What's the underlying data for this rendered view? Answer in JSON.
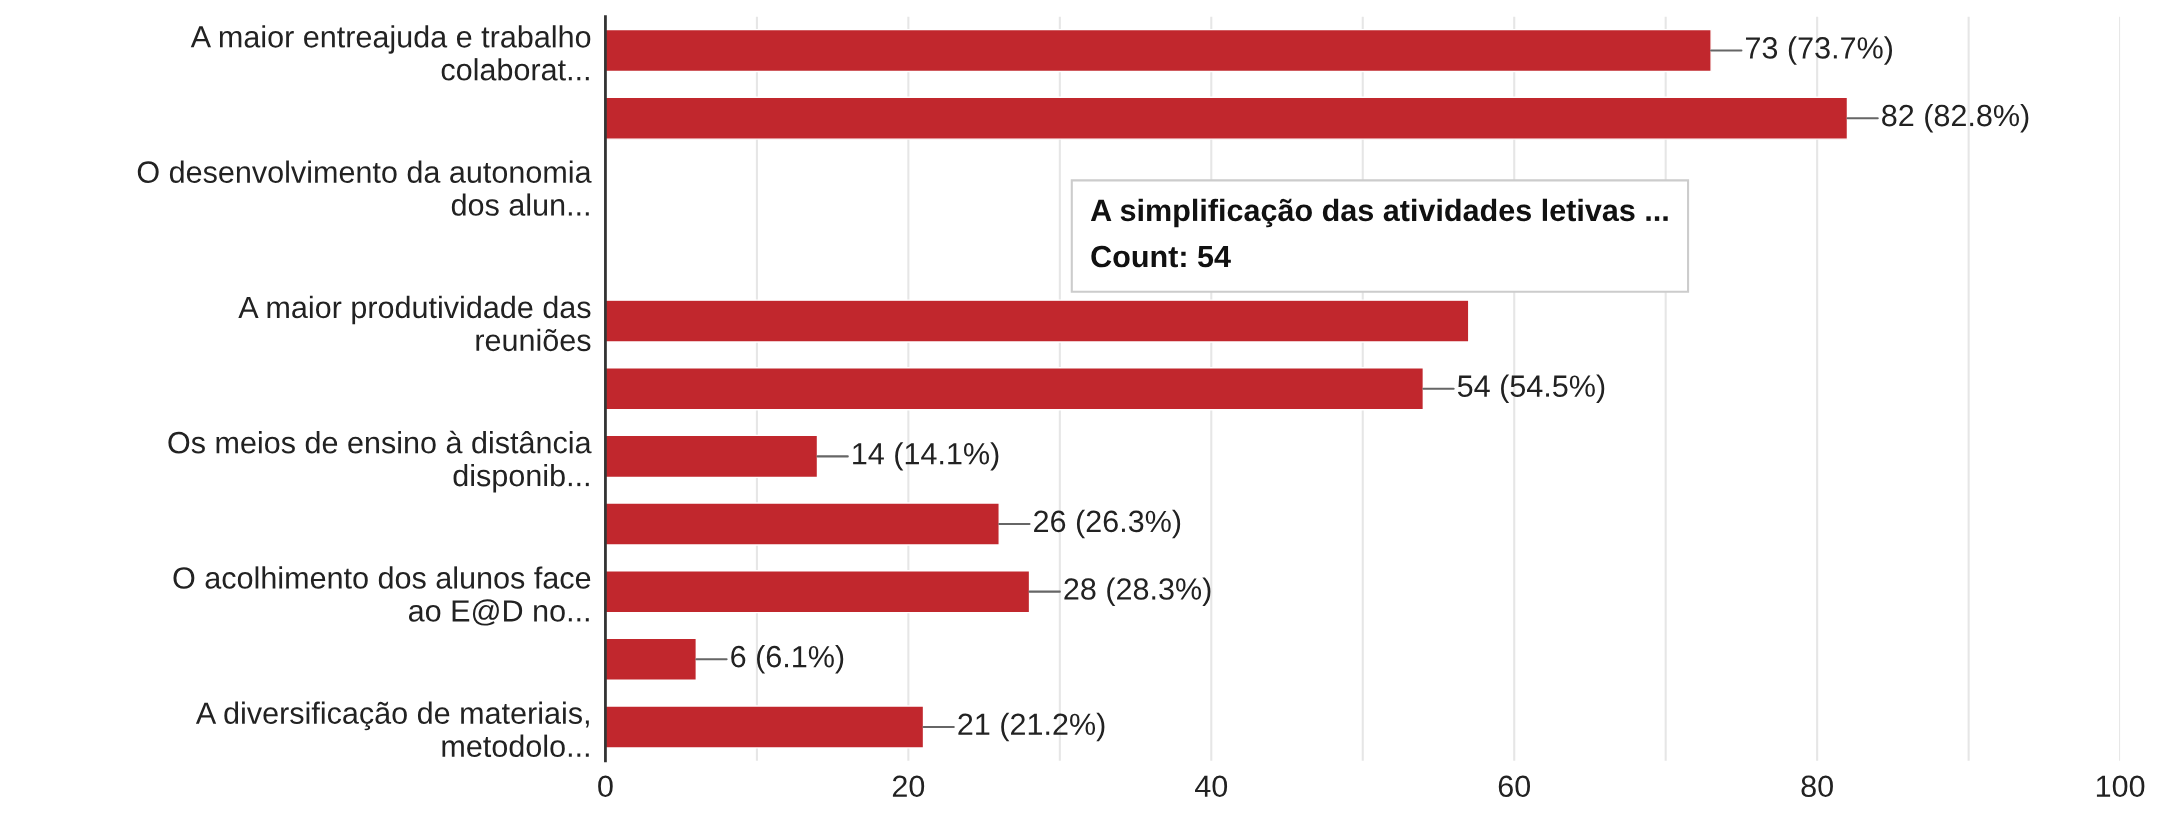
{
  "chart_data": {
    "type": "bar",
    "orientation": "horizontal",
    "categories": [
      "A maior entreajuda e trabalho\ncolaborat...",
      null,
      "O desenvolvimento da autonomia\ndos alun...",
      null,
      "A maior produtividade das\nreuniões",
      null,
      "Os meios de ensino à distância\ndisponib...",
      null,
      "O acolhimento dos alunos face\nao E@D no...",
      null,
      "A diversificação de materiais,\nmetodolo..."
    ],
    "values": [
      73,
      82,
      null,
      null,
      57,
      54,
      14,
      26,
      28,
      6,
      21
    ],
    "value_labels": [
      "73 (73.7%)",
      "82 (82.8%)",
      null,
      null,
      null,
      "54 (54.5%)",
      "14 (14.1%)",
      "26 (26.3%)",
      "28 (28.3%)",
      "6 (6.1%)",
      "21 (21.2%)"
    ],
    "color": "#c1272d",
    "xlim": [
      0,
      100
    ],
    "xticks": [
      0,
      {
        "value": 10,
        "label": null
      },
      20,
      {
        "value": 30,
        "label": null
      },
      40,
      {
        "value": 50,
        "label": null
      },
      60,
      {
        "value": 70,
        "label": null
      },
      80,
      {
        "value": 90,
        "label": null
      },
      100
    ],
    "grid": "x",
    "annotations": [
      "A simplificação das atividades letivas ...\nCount: 54"
    ]
  }
}
